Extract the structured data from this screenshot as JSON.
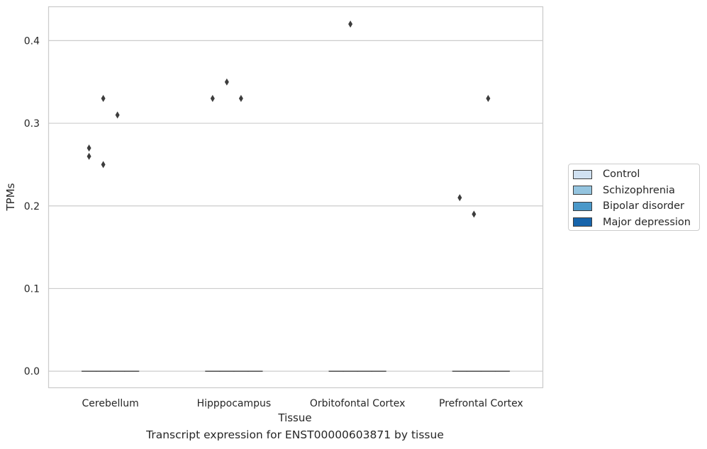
{
  "chart_data": {
    "type": "box",
    "title": "",
    "xlabel": "Tissue",
    "ylabel": "TPMs",
    "caption": "Transcript expression for ENST00000603871 by tissue",
    "categories": [
      "Cerebellum",
      "Hipppocampus",
      "Orbitofontal Cortex",
      "Prefrontal Cortex"
    ],
    "ylim": [
      -0.02,
      0.441
    ],
    "yticks": [
      0.0,
      0.1,
      0.2,
      0.3,
      0.4
    ],
    "ytick_labels": [
      "0.0",
      "0.1",
      "0.2",
      "0.3",
      "0.4"
    ],
    "grid": true,
    "legend_position": "right",
    "series": [
      {
        "name": "Control",
        "color": "#d0e1f2",
        "boxes": [
          {
            "q1": 0,
            "median": 0,
            "q3": 0,
            "whislo": 0,
            "whishi": 0
          },
          {
            "q1": 0,
            "median": 0,
            "q3": 0,
            "whislo": 0,
            "whishi": 0
          },
          {
            "q1": 0,
            "median": 0,
            "q3": 0,
            "whislo": 0,
            "whishi": 0
          },
          {
            "q1": 0,
            "median": 0,
            "q3": 0,
            "whislo": 0,
            "whishi": 0
          }
        ],
        "outliers": [
          [
            0.27,
            0.26
          ],
          [
            0.33
          ],
          [],
          [
            0.21
          ]
        ]
      },
      {
        "name": "Schizophrenia",
        "color": "#94c4df",
        "boxes": [
          {
            "q1": 0,
            "median": 0,
            "q3": 0,
            "whislo": 0,
            "whishi": 0
          },
          {
            "q1": 0,
            "median": 0,
            "q3": 0,
            "whislo": 0,
            "whishi": 0
          },
          {
            "q1": 0,
            "median": 0,
            "q3": 0,
            "whislo": 0,
            "whishi": 0
          },
          {
            "q1": 0,
            "median": 0,
            "q3": 0,
            "whislo": 0,
            "whishi": 0
          }
        ],
        "outliers": [
          [
            0.33,
            0.25
          ],
          [
            0.35
          ],
          [
            0.42
          ],
          [
            0.19
          ]
        ]
      },
      {
        "name": "Bipolar disorder",
        "color": "#4a98c9",
        "boxes": [
          {
            "q1": 0,
            "median": 0,
            "q3": 0,
            "whislo": 0,
            "whishi": 0
          },
          {
            "q1": 0,
            "median": 0,
            "q3": 0,
            "whislo": 0,
            "whishi": 0
          },
          {
            "q1": 0,
            "median": 0,
            "q3": 0,
            "whislo": 0,
            "whishi": 0
          },
          {
            "q1": 0,
            "median": 0,
            "q3": 0,
            "whislo": 0,
            "whishi": 0
          }
        ],
        "outliers": [
          [
            0.31
          ],
          [
            0.33
          ],
          [],
          [
            0.33
          ]
        ]
      },
      {
        "name": "Major depression",
        "color": "#1764ab",
        "boxes": [
          {
            "q1": 0,
            "median": 0,
            "q3": 0,
            "whislo": 0,
            "whishi": 0
          },
          {
            "q1": 0,
            "median": 0,
            "q3": 0,
            "whislo": 0,
            "whishi": 0
          },
          {
            "q1": 0,
            "median": 0,
            "q3": 0,
            "whislo": 0,
            "whishi": 0
          },
          {
            "q1": 0,
            "median": 0,
            "q3": 0,
            "whislo": 0,
            "whishi": 0
          }
        ],
        "outliers": [
          [],
          [],
          [],
          []
        ]
      }
    ]
  }
}
